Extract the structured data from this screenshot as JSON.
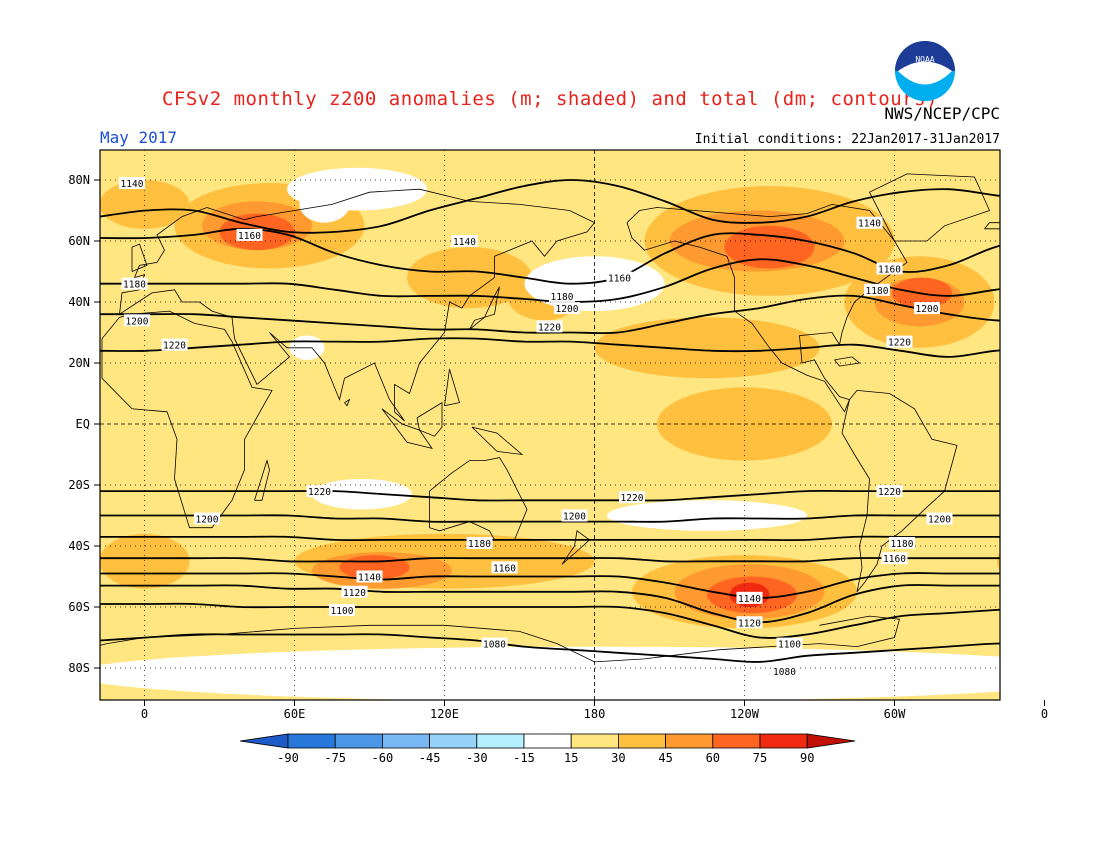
{
  "header": {
    "title": "CFSv2 monthly z200 anomalies (m; shaded) and total (dm; contours)",
    "month": "May 2017",
    "initial_conditions": "Initial conditions: 22Jan2017-31Jan2017",
    "agency": "NWS/NCEP/CPC",
    "logo_text": "NOAA"
  },
  "colors": {
    "title": "#e8221b",
    "month": "#1e4fd8",
    "c15": "#ffe680",
    "c30": "#ffc040",
    "c45": "#ff9a30",
    "c60": "#ff6420",
    "c75": "#f02a10",
    "c90": "#c01008",
    "cm15": "#b5f0ff",
    "cm30": "#96d2fa",
    "cm45": "#78b9f5",
    "cm60": "#4b96e6",
    "cm75": "#2878dc",
    "cm90": "#1e5ac8"
  },
  "map": {
    "lat_labels": [
      "80N",
      "60N",
      "40N",
      "20N",
      "EQ",
      "20S",
      "40S",
      "60S",
      "80S"
    ],
    "lon_labels": [
      "0",
      "60E",
      "120E",
      "180",
      "120W",
      "60W",
      "0"
    ],
    "contours": [
      {
        "label": "1140",
        "lat": [
          68,
          70,
          70,
          66,
          63,
          63,
          65,
          70,
          74,
          78,
          80,
          78,
          73,
          67,
          66,
          68,
          73,
          76,
          77,
          75,
          73,
          70
        ]
      },
      {
        "label": "1160",
        "lat": [
          61,
          61,
          62,
          64,
          62,
          56,
          52,
          50,
          50,
          48,
          46,
          48,
          56,
          62,
          62,
          60,
          56,
          50,
          52,
          58,
          61,
          61
        ]
      },
      {
        "label": "1180",
        "lat": [
          46,
          46,
          46,
          46,
          46,
          44,
          42,
          42,
          42,
          41,
          40,
          41,
          45,
          51,
          54,
          52,
          48,
          44,
          42,
          44,
          46,
          46
        ]
      },
      {
        "label": "1200",
        "lat": [
          36,
          36,
          36,
          35,
          34,
          33,
          32,
          31,
          31,
          30,
          30,
          30,
          33,
          36,
          38,
          41,
          42,
          39,
          36,
          34,
          34,
          35
        ]
      },
      {
        "label": "1220",
        "lat": [
          24,
          24,
          25,
          26,
          27,
          27,
          27,
          28,
          28,
          27,
          27,
          26,
          25,
          24,
          24,
          25,
          26,
          24,
          22,
          24,
          25,
          25
        ]
      },
      {
        "label": "1220",
        "lat": [
          -22,
          -22,
          -22,
          -22,
          -22,
          -22,
          -23,
          -24,
          -25,
          -25,
          -25,
          -25,
          -25,
          -24,
          -23,
          -22,
          -22,
          -22,
          -22,
          -22,
          -22,
          -22
        ]
      },
      {
        "label": "1200",
        "lat": [
          -30,
          -30,
          -30,
          -30,
          -30,
          -31,
          -31,
          -32,
          -32,
          -32,
          -32,
          -32,
          -32,
          -31,
          -31,
          -31,
          -30,
          -30,
          -30,
          -30,
          -30,
          -30
        ]
      },
      {
        "label": "1180",
        "lat": [
          -37,
          -37,
          -37,
          -37,
          -37,
          -38,
          -38,
          -38,
          -38,
          -38,
          -38,
          -38,
          -38,
          -38,
          -38,
          -38,
          -37,
          -37,
          -37,
          -37,
          -37,
          -37
        ]
      },
      {
        "label": "1160",
        "lat": [
          -44,
          -44,
          -44,
          -44,
          -45,
          -45,
          -45,
          -44,
          -44,
          -44,
          -44,
          -44,
          -45,
          -45,
          -45,
          -45,
          -44,
          -44,
          -44,
          -44,
          -44,
          -44
        ]
      },
      {
        "label": "1140",
        "lat": [
          -49,
          -49,
          -49,
          -49,
          -49,
          -50,
          -51,
          -50,
          -50,
          -50,
          -50,
          -50,
          -52,
          -55,
          -57,
          -55,
          -51,
          -49,
          -49,
          -49,
          -49,
          -49
        ]
      },
      {
        "label": "1120",
        "lat": [
          -53,
          -53,
          -53,
          -53,
          -54,
          -54,
          -55,
          -55,
          -55,
          -55,
          -55,
          -55,
          -57,
          -62,
          -65,
          -62,
          -56,
          -53,
          -53,
          -53,
          -53,
          -53
        ]
      },
      {
        "label": "1100",
        "lat": [
          -59,
          -59,
          -59,
          -60,
          -60,
          -60,
          -60,
          -60,
          -60,
          -60,
          -60,
          -60,
          -62,
          -66,
          -70,
          -69,
          -66,
          -63,
          -62,
          -61,
          -60,
          -59
        ]
      },
      {
        "label": "1080",
        "lat": [
          -71,
          -70,
          -69,
          -69,
          -69,
          -69,
          -69,
          -70,
          -71,
          -73,
          -74,
          -75,
          -76,
          -77,
          -78,
          -76,
          -75,
          -74,
          -73,
          -72,
          -72,
          -71
        ]
      }
    ],
    "contour_labels": [
      {
        "text": "1140",
        "lon": -5,
        "lat": 79
      },
      {
        "text": "1160",
        "lon": 42,
        "lat": 62
      },
      {
        "text": "1140",
        "lon": 128,
        "lat": 60
      },
      {
        "text": "1160",
        "lon": 190,
        "lat": 48
      },
      {
        "text": "1140",
        "lon": 290,
        "lat": 66
      },
      {
        "text": "1160",
        "lon": 298,
        "lat": 51
      },
      {
        "text": "1180",
        "lon": -4,
        "lat": 46
      },
      {
        "text": "1180",
        "lon": 167,
        "lat": 42
      },
      {
        "text": "1180",
        "lon": 293,
        "lat": 44
      },
      {
        "text": "1200",
        "lon": -3,
        "lat": 34
      },
      {
        "text": "1200",
        "lon": 169,
        "lat": 38
      },
      {
        "text": "1200",
        "lon": 313,
        "lat": 38
      },
      {
        "text": "1220",
        "lon": 12,
        "lat": 26
      },
      {
        "text": "1220",
        "lon": 162,
        "lat": 32
      },
      {
        "text": "1220",
        "lon": 302,
        "lat": 27
      },
      {
        "text": "1220",
        "lon": 70,
        "lat": -22
      },
      {
        "text": "1220",
        "lon": 195,
        "lat": -24
      },
      {
        "text": "1220",
        "lon": 298,
        "lat": -22
      },
      {
        "text": "1200",
        "lon": 25,
        "lat": -31
      },
      {
        "text": "1200",
        "lon": 172,
        "lat": -30
      },
      {
        "text": "1200",
        "lon": 318,
        "lat": -31
      },
      {
        "text": "1180",
        "lon": 134,
        "lat": -39
      },
      {
        "text": "1180",
        "lon": 303,
        "lat": -39
      },
      {
        "text": "1160",
        "lon": 144,
        "lat": -47
      },
      {
        "text": "1160",
        "lon": 300,
        "lat": -44
      },
      {
        "text": "1140",
        "lon": 90,
        "lat": -50
      },
      {
        "text": "1140",
        "lon": 242,
        "lat": -57
      },
      {
        "text": "1120",
        "lon": 84,
        "lat": -55
      },
      {
        "text": "1120",
        "lon": 242,
        "lat": -65
      },
      {
        "text": "1100",
        "lon": 79,
        "lat": -61
      },
      {
        "text": "1100",
        "lon": 258,
        "lat": -72
      },
      {
        "text": "1080",
        "lon": 140,
        "lat": -72
      },
      {
        "text": "1080",
        "lon": 256,
        "lat": -81
      }
    ],
    "anomaly_blobs": [
      {
        "level": "c15",
        "lon": 180,
        "lat": 0,
        "rx": 220,
        "ry": 78
      },
      {
        "level": "c30",
        "lon": 50,
        "lat": 65,
        "rx": 38,
        "ry": 14
      },
      {
        "level": "c30",
        "lon": 0,
        "lat": 72,
        "rx": 18,
        "ry": 8
      },
      {
        "level": "c30",
        "lon": 130,
        "lat": 48,
        "rx": 25,
        "ry": 10
      },
      {
        "level": "c30",
        "lon": 160,
        "lat": 42,
        "rx": 15,
        "ry": 8
      },
      {
        "level": "c30",
        "lon": 250,
        "lat": 60,
        "rx": 50,
        "ry": 18
      },
      {
        "level": "c30",
        "lon": 310,
        "lat": 40,
        "rx": 30,
        "ry": 15
      },
      {
        "level": "c30",
        "lon": 225,
        "lat": 25,
        "rx": 45,
        "ry": 10
      },
      {
        "level": "c30",
        "lon": 240,
        "lat": 0,
        "rx": 35,
        "ry": 12
      },
      {
        "level": "c30",
        "lon": 120,
        "lat": -45,
        "rx": 60,
        "ry": 9
      },
      {
        "level": "c30",
        "lon": 240,
        "lat": -55,
        "rx": 45,
        "ry": 12
      },
      {
        "level": "c30",
        "lon": 0,
        "lat": -45,
        "rx": 18,
        "ry": 9
      },
      {
        "level": "c30",
        "lon": 355,
        "lat": -45,
        "rx": 14,
        "ry": 8
      },
      {
        "level": "c45",
        "lon": 45,
        "lat": 65,
        "rx": 22,
        "ry": 8
      },
      {
        "level": "c45",
        "lon": 245,
        "lat": 60,
        "rx": 35,
        "ry": 10
      },
      {
        "level": "c45",
        "lon": 310,
        "lat": 40,
        "rx": 18,
        "ry": 8
      },
      {
        "level": "c45",
        "lon": 95,
        "lat": -48,
        "rx": 28,
        "ry": 6
      },
      {
        "level": "c45",
        "lon": 242,
        "lat": -55,
        "rx": 30,
        "ry": 9
      },
      {
        "level": "c60",
        "lon": 45,
        "lat": 63,
        "rx": 15,
        "ry": 6
      },
      {
        "level": "c60",
        "lon": 250,
        "lat": 58,
        "rx": 18,
        "ry": 7
      },
      {
        "level": "c60",
        "lon": 311,
        "lat": 43,
        "rx": 12,
        "ry": 5
      },
      {
        "level": "c60",
        "lon": 92,
        "lat": -47,
        "rx": 14,
        "ry": 4
      },
      {
        "level": "c60",
        "lon": 243,
        "lat": -56,
        "rx": 18,
        "ry": 6
      },
      {
        "level": "c75",
        "lon": 242,
        "lat": -56,
        "rx": 8,
        "ry": 4
      }
    ],
    "white_patches": [
      {
        "lon": 85,
        "lat": 77,
        "rx": 28,
        "ry": 7
      },
      {
        "lon": 72,
        "lat": 72,
        "rx": 10,
        "ry": 6
      },
      {
        "lon": 180,
        "lat": 46,
        "rx": 28,
        "ry": 9
      },
      {
        "lon": 65,
        "lat": 25,
        "rx": 7,
        "ry": 4
      },
      {
        "lon": 87,
        "lat": -23,
        "rx": 20,
        "ry": 5
      },
      {
        "lon": 225,
        "lat": -30,
        "rx": 40,
        "ry": 5
      },
      {
        "lon": 180,
        "lat": -82,
        "rx": 210,
        "ry": 9
      }
    ]
  },
  "colorbar": {
    "labels": [
      "-90",
      "-75",
      "-60",
      "-45",
      "-30",
      "-15",
      "15",
      "30",
      "45",
      "60",
      "75",
      "90"
    ],
    "box_colors": [
      "cm75",
      "cm60",
      "cm45",
      "cm30",
      "cm15",
      "white",
      "c15",
      "c30",
      "c45",
      "c60",
      "c75"
    ],
    "left_tip": "cm90",
    "right_tip": "c90"
  }
}
